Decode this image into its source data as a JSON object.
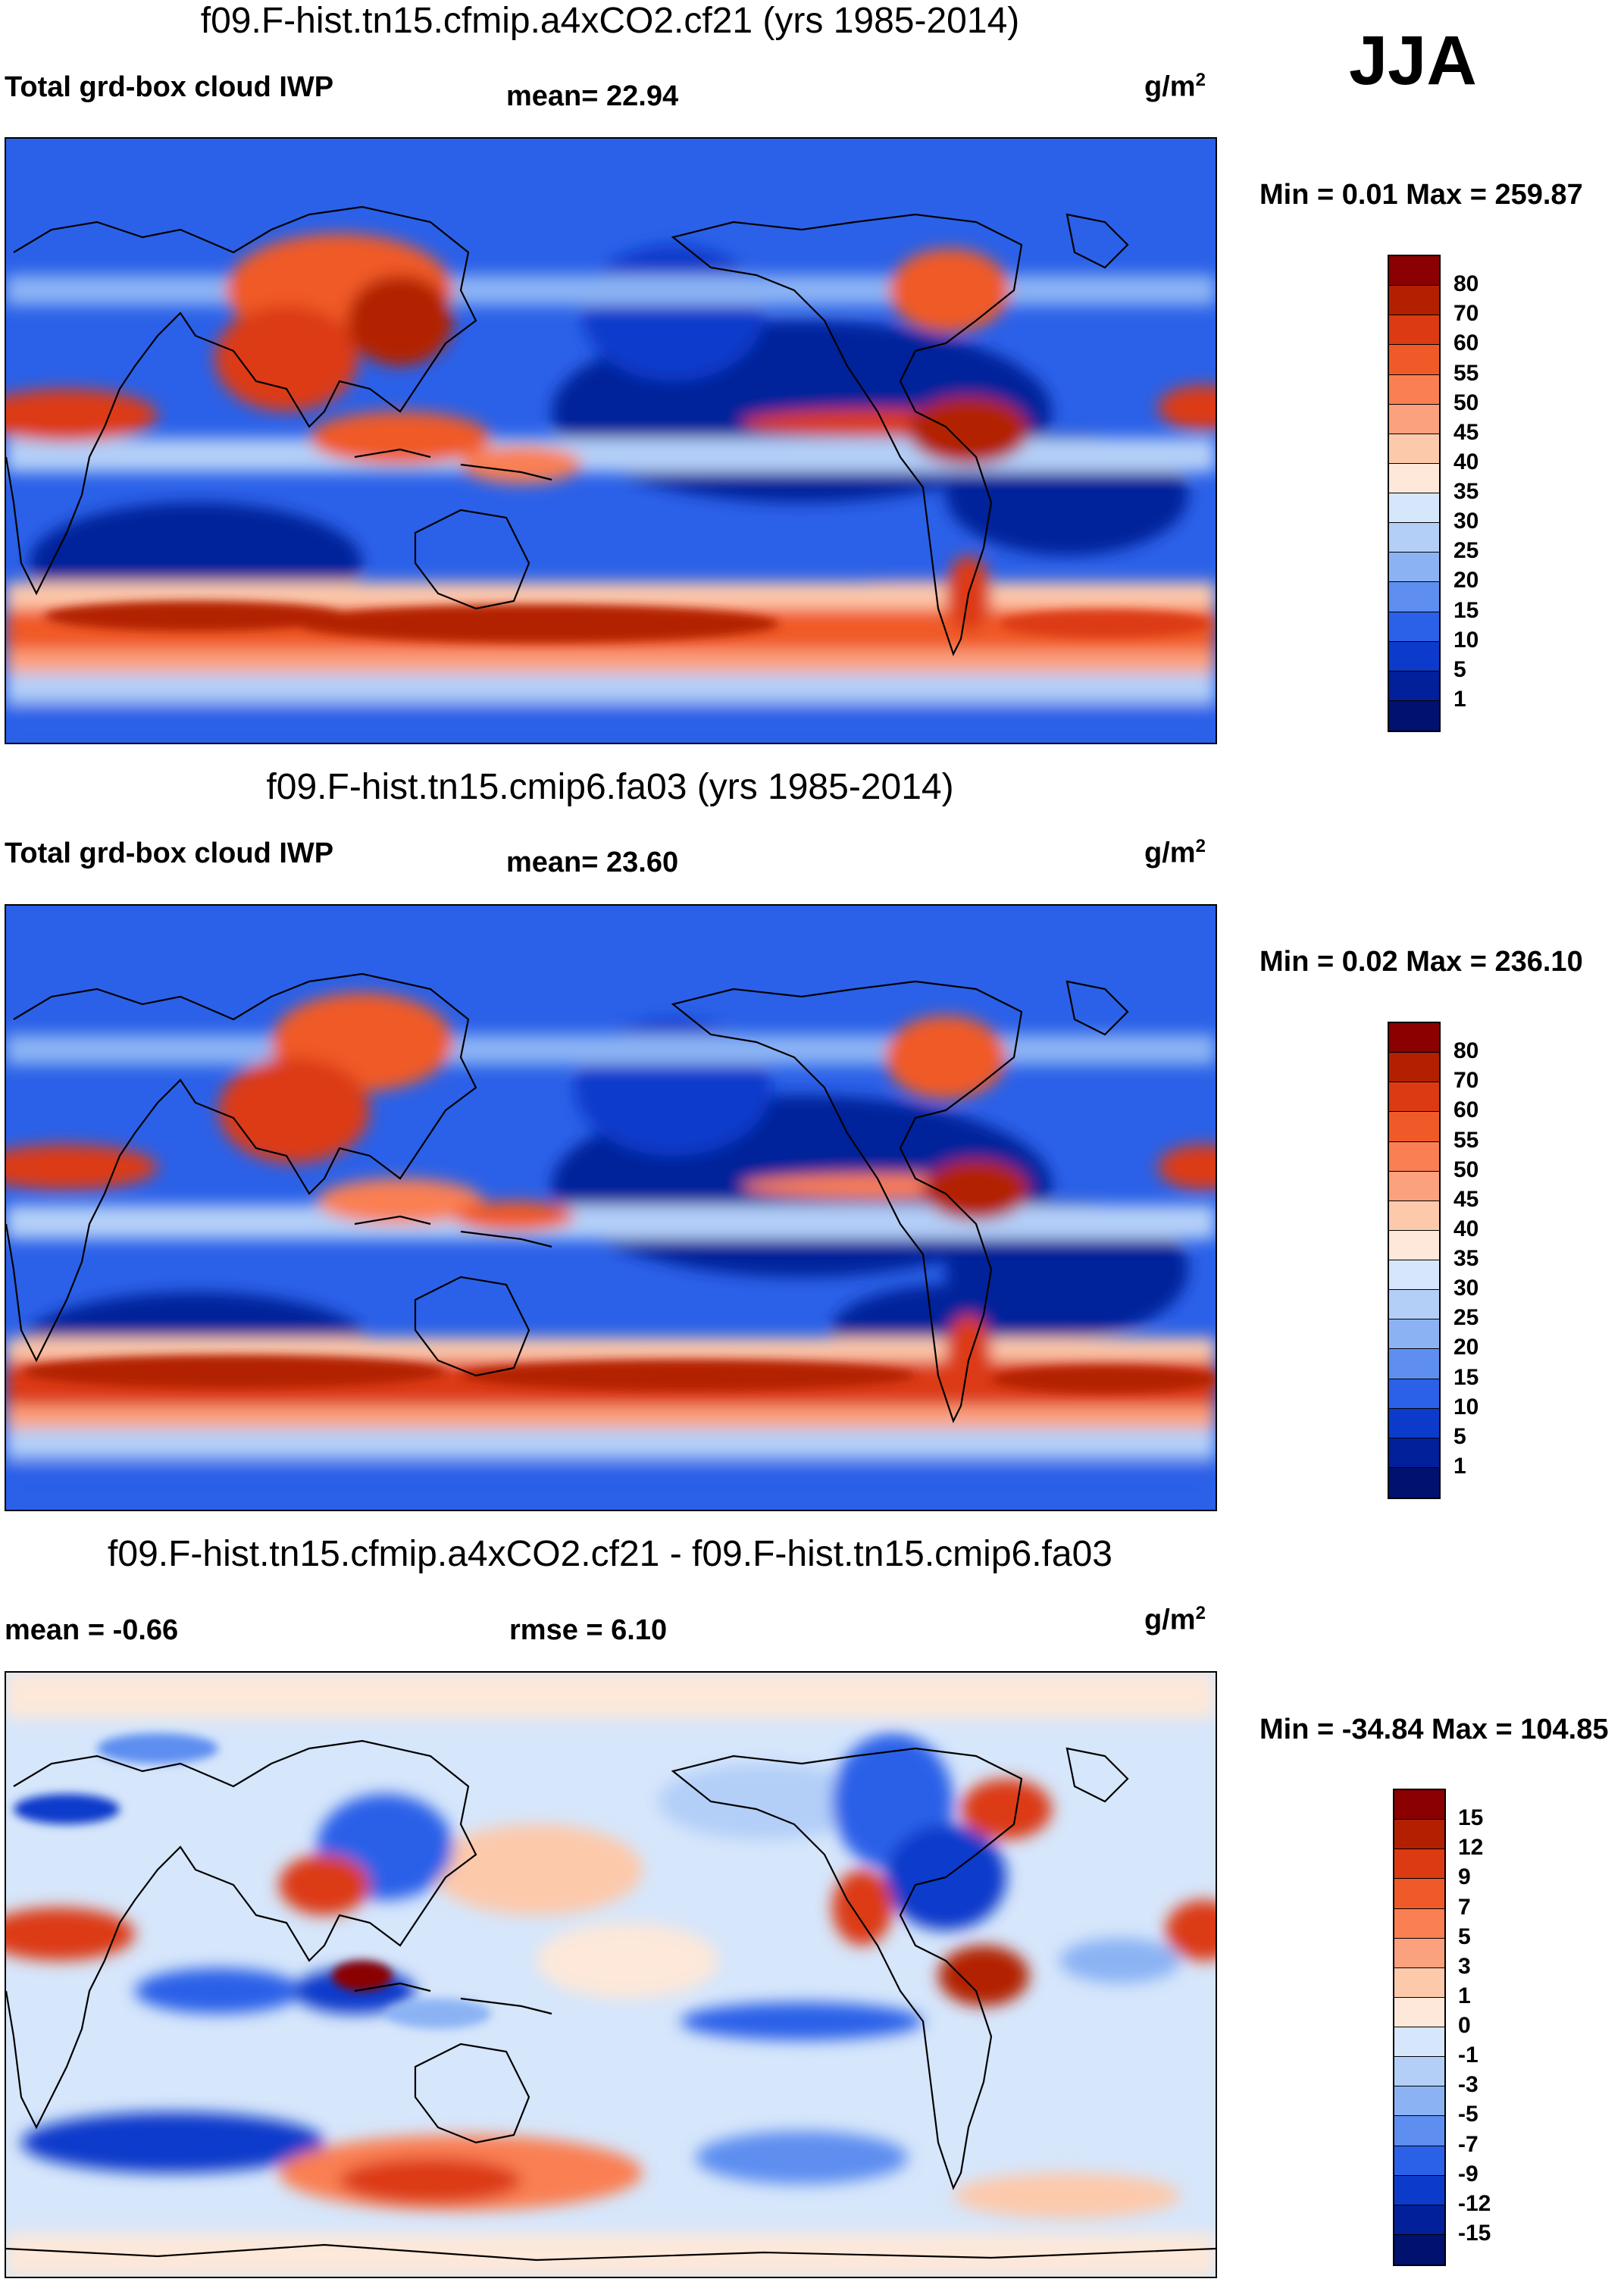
{
  "season": "JJA",
  "panels": [
    {
      "title": "f09.F-hist.tn15.cfmip.a4xCO2.cf21 (yrs 1985-2014)",
      "left_label": "Total grd-box cloud IWP",
      "center_label": "mean=  22.94",
      "units_base": "g/m",
      "units_sup": "2",
      "minmax": "Min =   0.01 Max = 259.87",
      "levels": [
        "80",
        "70",
        "60",
        "55",
        "50",
        "45",
        "40",
        "35",
        "30",
        "25",
        "20",
        "15",
        "10",
        "5",
        "1"
      ],
      "colors": [
        "#8b0000",
        "#b22000",
        "#dc3a12",
        "#f05a28",
        "#fa7f52",
        "#fca17e",
        "#fdc9ab",
        "#fde8d9",
        "#d6e6fb",
        "#b3cff8",
        "#8bb3f4",
        "#5d8ef0",
        "#2b61e8",
        "#0c3bcb",
        "#02209a",
        "#00126e"
      ]
    },
    {
      "title": "f09.F-hist.tn15.cmip6.fa03 (yrs 1985-2014)",
      "left_label": "Total grd-box cloud IWP",
      "center_label": "mean=  23.60",
      "units_base": "g/m",
      "units_sup": "2",
      "minmax": "Min =   0.02 Max = 236.10",
      "levels": [
        "80",
        "70",
        "60",
        "55",
        "50",
        "45",
        "40",
        "35",
        "30",
        "25",
        "20",
        "15",
        "10",
        "5",
        "1"
      ],
      "colors": [
        "#8b0000",
        "#b22000",
        "#dc3a12",
        "#f05a28",
        "#fa7f52",
        "#fca17e",
        "#fdc9ab",
        "#fde8d9",
        "#d6e6fb",
        "#b3cff8",
        "#8bb3f4",
        "#5d8ef0",
        "#2b61e8",
        "#0c3bcb",
        "#02209a",
        "#00126e"
      ]
    },
    {
      "title": "f09.F-hist.tn15.cfmip.a4xCO2.cf21 - f09.F-hist.tn15.cmip6.fa03",
      "left_label": "mean =  -0.66",
      "center_label": "rmse =    6.10",
      "units_base": "g/m",
      "units_sup": "2",
      "minmax": "Min = -34.84 Max = 104.85",
      "levels": [
        "15",
        "12",
        "9",
        "7",
        "5",
        "3",
        "1",
        "0",
        "-1",
        "-3",
        "-5",
        "-7",
        "-9",
        "-12",
        "-15"
      ],
      "colors": [
        "#8b0000",
        "#b22000",
        "#dc3a12",
        "#f05a28",
        "#fa7f52",
        "#fca17e",
        "#fdc9ab",
        "#fde8d9",
        "#d6e6fb",
        "#b3cff8",
        "#8bb3f4",
        "#5d8ef0",
        "#2b61e8",
        "#0c3bcb",
        "#02209a",
        "#00126e"
      ]
    }
  ]
}
